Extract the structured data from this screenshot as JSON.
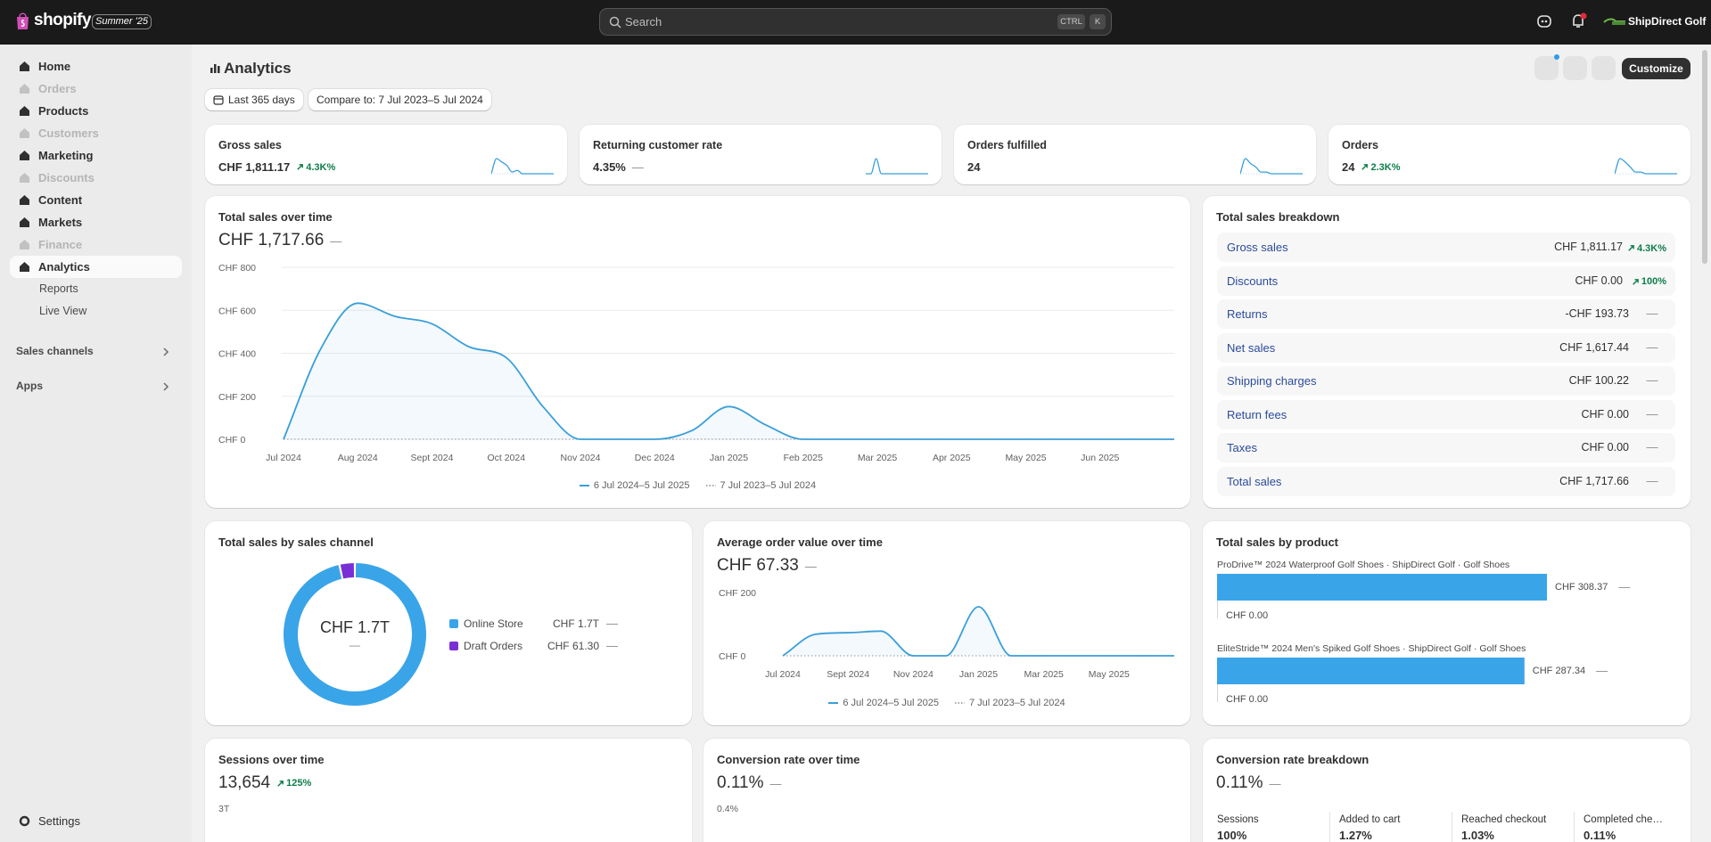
{
  "topbar": {
    "brand": "shopify",
    "badge": "Summer '25",
    "search_placeholder": "Search",
    "shortcut_keys": [
      "CTRL",
      "K"
    ],
    "store_name": "ShipDirect Golf"
  },
  "sidebar": {
    "items": [
      {
        "label": "Home"
      },
      {
        "label": "Orders",
        "disabled": true
      },
      {
        "label": "Products"
      },
      {
        "label": "Customers",
        "disabled": true
      },
      {
        "label": "Marketing"
      },
      {
        "label": "Discounts",
        "disabled": true
      },
      {
        "label": "Content"
      },
      {
        "label": "Markets"
      },
      {
        "label": "Finance",
        "disabled": true
      },
      {
        "label": "Analytics",
        "active": true,
        "children": [
          "Reports",
          "Live View"
        ]
      }
    ],
    "sections": [
      "Sales channels",
      "Apps"
    ],
    "settings": "Settings"
  },
  "header": {
    "title": "Analytics",
    "date_range": "Last 365 days",
    "compare": "Compare to: 7 Jul 2023–5 Jul 2024",
    "customize": "Customize"
  },
  "kpis": [
    {
      "label": "Gross sales",
      "value": "CHF 1,811.17",
      "change": "4.3K%",
      "trend": "up",
      "sparkline": [
        0,
        9,
        7,
        5,
        1,
        2,
        0,
        0,
        0,
        0,
        0,
        0,
        0
      ]
    },
    {
      "label": "Returning customer rate",
      "value": "4.35%",
      "change": "—",
      "sparkline": [
        0,
        0,
        10,
        0,
        0,
        0,
        0,
        0,
        0,
        0,
        0,
        0,
        0
      ]
    },
    {
      "label": "Orders fulfilled",
      "value": "24",
      "sparkline": [
        0,
        9,
        6,
        4,
        1,
        1,
        0,
        0,
        0,
        0,
        0,
        0,
        0
      ]
    },
    {
      "label": "Orders",
      "value": "24",
      "change": "2.3K%",
      "trend": "up",
      "sparkline": [
        0,
        9,
        7,
        4,
        1,
        1,
        0,
        0,
        0,
        0,
        0,
        0,
        0
      ]
    }
  ],
  "chart_data": [
    {
      "type": "line",
      "title": "Total sales over time",
      "total": "CHF 1,717.66",
      "change": "—",
      "ylim": [
        0,
        800
      ],
      "yticks": [
        {
          "value": 0,
          "label": "CHF 0"
        },
        {
          "value": 200,
          "label": "CHF 200"
        },
        {
          "value": 400,
          "label": "CHF 400"
        },
        {
          "value": 600,
          "label": "CHF 600"
        },
        {
          "value": 800,
          "label": "CHF 800"
        }
      ],
      "grid": true,
      "categories": [
        "Jul 2024",
        null,
        "Aug 2024",
        null,
        "Sept 2024",
        null,
        "Oct 2024",
        null,
        "Nov 2024",
        null,
        "Dec 2024",
        null,
        "Jan 2025",
        null,
        "Feb 2025",
        null,
        "Mar 2025",
        null,
        "Apr 2025",
        null,
        "May 2025",
        null,
        "Jun 2025",
        null,
        null
      ],
      "series": [
        {
          "name": "6 Jul 2024–5 Jul 2025",
          "color": "#3a9fd9",
          "values": [
            0,
            420,
            633,
            572,
            537,
            430,
            380,
            150,
            0,
            0,
            0,
            40,
            152,
            66,
            0,
            0,
            0,
            0,
            0,
            0,
            0,
            0,
            0,
            0,
            0
          ]
        },
        {
          "name": "7 Jul 2023–5 Jul 2024",
          "color": "#a8a8a8",
          "style": "dotted",
          "values": [
            0,
            0,
            0,
            0,
            0,
            0,
            0,
            0,
            0,
            0,
            0,
            0,
            0,
            0,
            0,
            0,
            0,
            0,
            0,
            0,
            0,
            0,
            0,
            0,
            0
          ]
        }
      ]
    },
    {
      "type": "donut",
      "title": "Total sales by sales channel",
      "center_label": "CHF 1.7T",
      "center_change": "—",
      "categories": [
        "Online Store",
        "Draft Orders"
      ],
      "values": [
        1700,
        61.3
      ],
      "value_labels": [
        "CHF 1.7T",
        "CHF 61.30"
      ],
      "changes": [
        "—",
        "—"
      ],
      "colors": [
        "#3aa4e8",
        "#7a2fd6"
      ]
    },
    {
      "type": "line",
      "title": "Average order value over time",
      "total": "CHF 67.33",
      "change": "—",
      "ylim": [
        0,
        200
      ],
      "yticks": [
        {
          "value": 0,
          "label": "CHF 0"
        },
        {
          "value": 200,
          "label": "CHF 200"
        }
      ],
      "grid": false,
      "categories": [
        "Jul 2024",
        null,
        "Sept 2024",
        null,
        "Nov 2024",
        null,
        "Jan 2025",
        null,
        "Mar 2025",
        null,
        "May 2025",
        null,
        null
      ],
      "series": [
        {
          "name": "6 Jul 2024–5 Jul 2025",
          "color": "#3a9fd9",
          "values": [
            0,
            68,
            73,
            78,
            0,
            0,
            155,
            0,
            0,
            0,
            0,
            0,
            0
          ]
        },
        {
          "name": "7 Jul 2023–5 Jul 2024",
          "color": "#a8a8a8",
          "style": "dotted",
          "values": [
            0,
            0,
            0,
            0,
            0,
            0,
            0,
            0,
            0,
            0,
            0,
            0,
            0
          ]
        }
      ]
    },
    {
      "type": "hbar",
      "title": "Total sales by product",
      "categories": [
        "ProDrive™ 2024 Waterproof Golf Shoes · ShipDirect Golf · Golf Shoes",
        "EliteStride™ 2024 Men's Spiked Golf Shoes · ShipDirect Golf · Golf Shoes"
      ],
      "values": [
        308.37,
        287.34
      ],
      "value_labels": [
        "CHF 308.37",
        "CHF 287.34"
      ],
      "changes": [
        "—",
        "—"
      ],
      "compare_values": [
        0,
        0
      ],
      "compare_labels": [
        "CHF 0.00",
        "CHF 0.00"
      ],
      "color": "#3aa4e8"
    }
  ],
  "sales_breakdown": {
    "title": "Total sales breakdown",
    "rows": [
      {
        "label": "Gross sales",
        "value": "CHF 1,811.17",
        "change": "4.3K%",
        "trend": "up"
      },
      {
        "label": "Discounts",
        "value": "CHF 0.00",
        "change": "100%",
        "trend": "up"
      },
      {
        "label": "Returns",
        "value": "-CHF 193.73",
        "change": "—"
      },
      {
        "label": "Net sales",
        "value": "CHF 1,617.44",
        "change": "—"
      },
      {
        "label": "Shipping charges",
        "value": "CHF 100.22",
        "change": "—"
      },
      {
        "label": "Return fees",
        "value": "CHF 0.00",
        "change": "—"
      },
      {
        "label": "Taxes",
        "value": "CHF 0.00",
        "change": "—"
      },
      {
        "label": "Total sales",
        "value": "CHF 1,717.66",
        "change": "—"
      }
    ]
  },
  "bottom_cards": [
    {
      "title": "Sessions over time",
      "value": "13,654",
      "change": "125%",
      "trend": "up",
      "axis_label": "3T"
    },
    {
      "title": "Conversion rate over time",
      "value": "0.11%",
      "change": "—",
      "axis_label": "0.4%"
    }
  ],
  "conversion_breakdown": {
    "title": "Conversion rate breakdown",
    "value": "0.11%",
    "change": "—",
    "steps": [
      {
        "label": "Sessions",
        "value": "100%"
      },
      {
        "label": "Added to cart",
        "value": "1.27%"
      },
      {
        "label": "Reached checkout",
        "value": "1.03%"
      },
      {
        "label": "Completed che…",
        "value": "0.11%"
      }
    ]
  }
}
